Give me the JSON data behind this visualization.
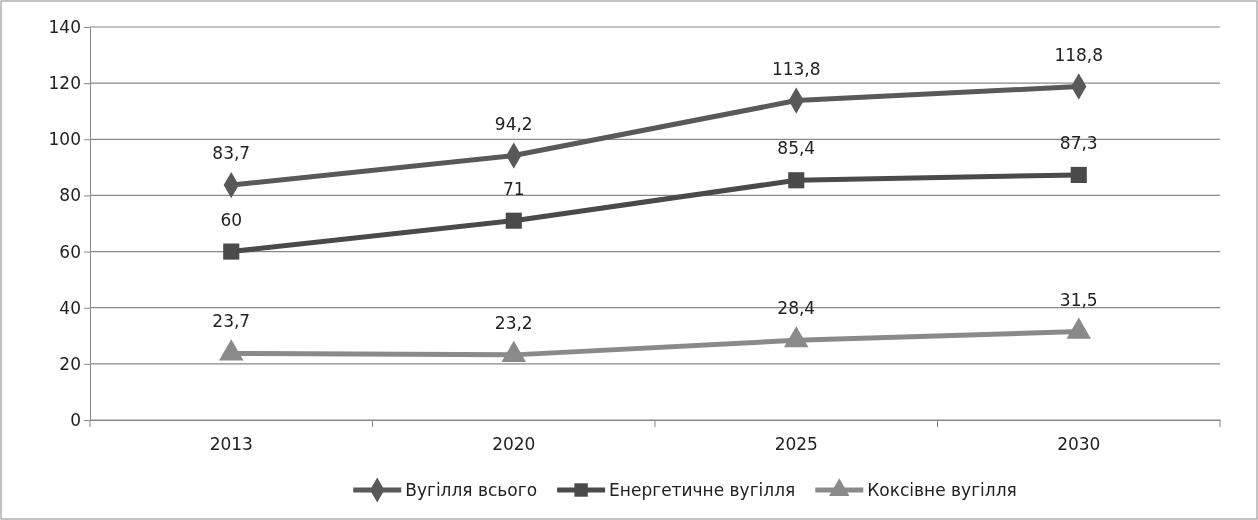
{
  "chart_data": {
    "type": "line",
    "categories": [
      "2013",
      "2020",
      "2025",
      "2030"
    ],
    "series": [
      {
        "name": "Вугілля всього",
        "color": "#595959",
        "marker": "diamond",
        "values": [
          83.7,
          94.2,
          113.8,
          118.8
        ],
        "value_labels": [
          "83,7",
          "94,2",
          "113,8",
          "118,8"
        ]
      },
      {
        "name": "Енергетичне вугілля",
        "color": "#4a4a4a",
        "marker": "square",
        "values": [
          60,
          71,
          85.4,
          87.3
        ],
        "value_labels": [
          "60",
          "71",
          "85,4",
          "87,3"
        ]
      },
      {
        "name": "Коксівне вугілля",
        "color": "#8a8a8a",
        "marker": "triangle",
        "values": [
          23.7,
          23.2,
          28.4,
          31.5
        ],
        "value_labels": [
          "23,7",
          "23,2",
          "28,4",
          "31,5"
        ]
      }
    ],
    "ylim": [
      0,
      140
    ],
    "yticks": [
      0,
      20,
      40,
      60,
      80,
      100,
      120,
      140
    ],
    "grid": "y",
    "legend": "bottom",
    "line_style": "solid"
  }
}
